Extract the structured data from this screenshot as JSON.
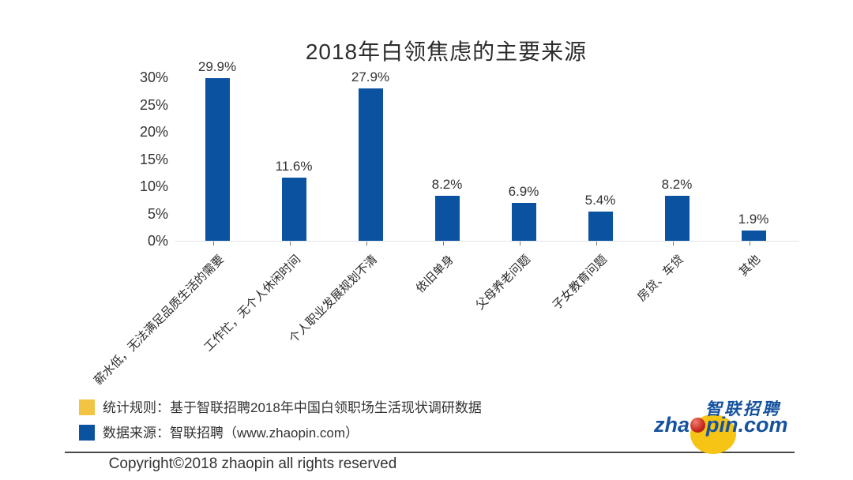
{
  "page": {
    "copyright": "Copyright©2018 zhaopin all rights reserved"
  },
  "chart_data": {
    "type": "bar",
    "title": "2018年白领焦虑的主要来源",
    "categories": [
      "薪水低，无法满足品质生活的需要",
      "工作忙，无个人休闲时间",
      "个人职业发展规划不清",
      "依旧单身",
      "父母养老问题",
      "子女教育问题",
      "房贷、车贷",
      "其他"
    ],
    "values": [
      29.9,
      11.6,
      27.9,
      8.2,
      6.9,
      5.4,
      8.2,
      1.9
    ],
    "value_labels": [
      "29.9%",
      "11.6%",
      "27.9%",
      "8.2%",
      "6.9%",
      "5.4%",
      "8.2%",
      "1.9%"
    ],
    "xlabel": "",
    "ylabel": "",
    "ylim": [
      0,
      30
    ],
    "ytick_labels": [
      "0%",
      "5%",
      "10%",
      "15%",
      "20%",
      "25%",
      "30%"
    ],
    "grid": false,
    "legend_position": "none",
    "bar_color": "#0b52a0",
    "xtick_label_rotation_deg": 45
  },
  "legend_notes": [
    {
      "swatch_color": "#f2c443",
      "label": "统计规则：基于智联招聘2018年中国白领职场生活现状调研数据"
    },
    {
      "swatch_color": "#0b52a0",
      "label": "数据来源：智联招聘（www.zhaopin.com）"
    }
  ],
  "logo": {
    "cn_name": "智联招聘",
    "domain_prefix": "zha",
    "domain_suffix": "pin.com",
    "blue": "#15539f",
    "yellow": "#f6c414",
    "red": "#c5281c"
  }
}
